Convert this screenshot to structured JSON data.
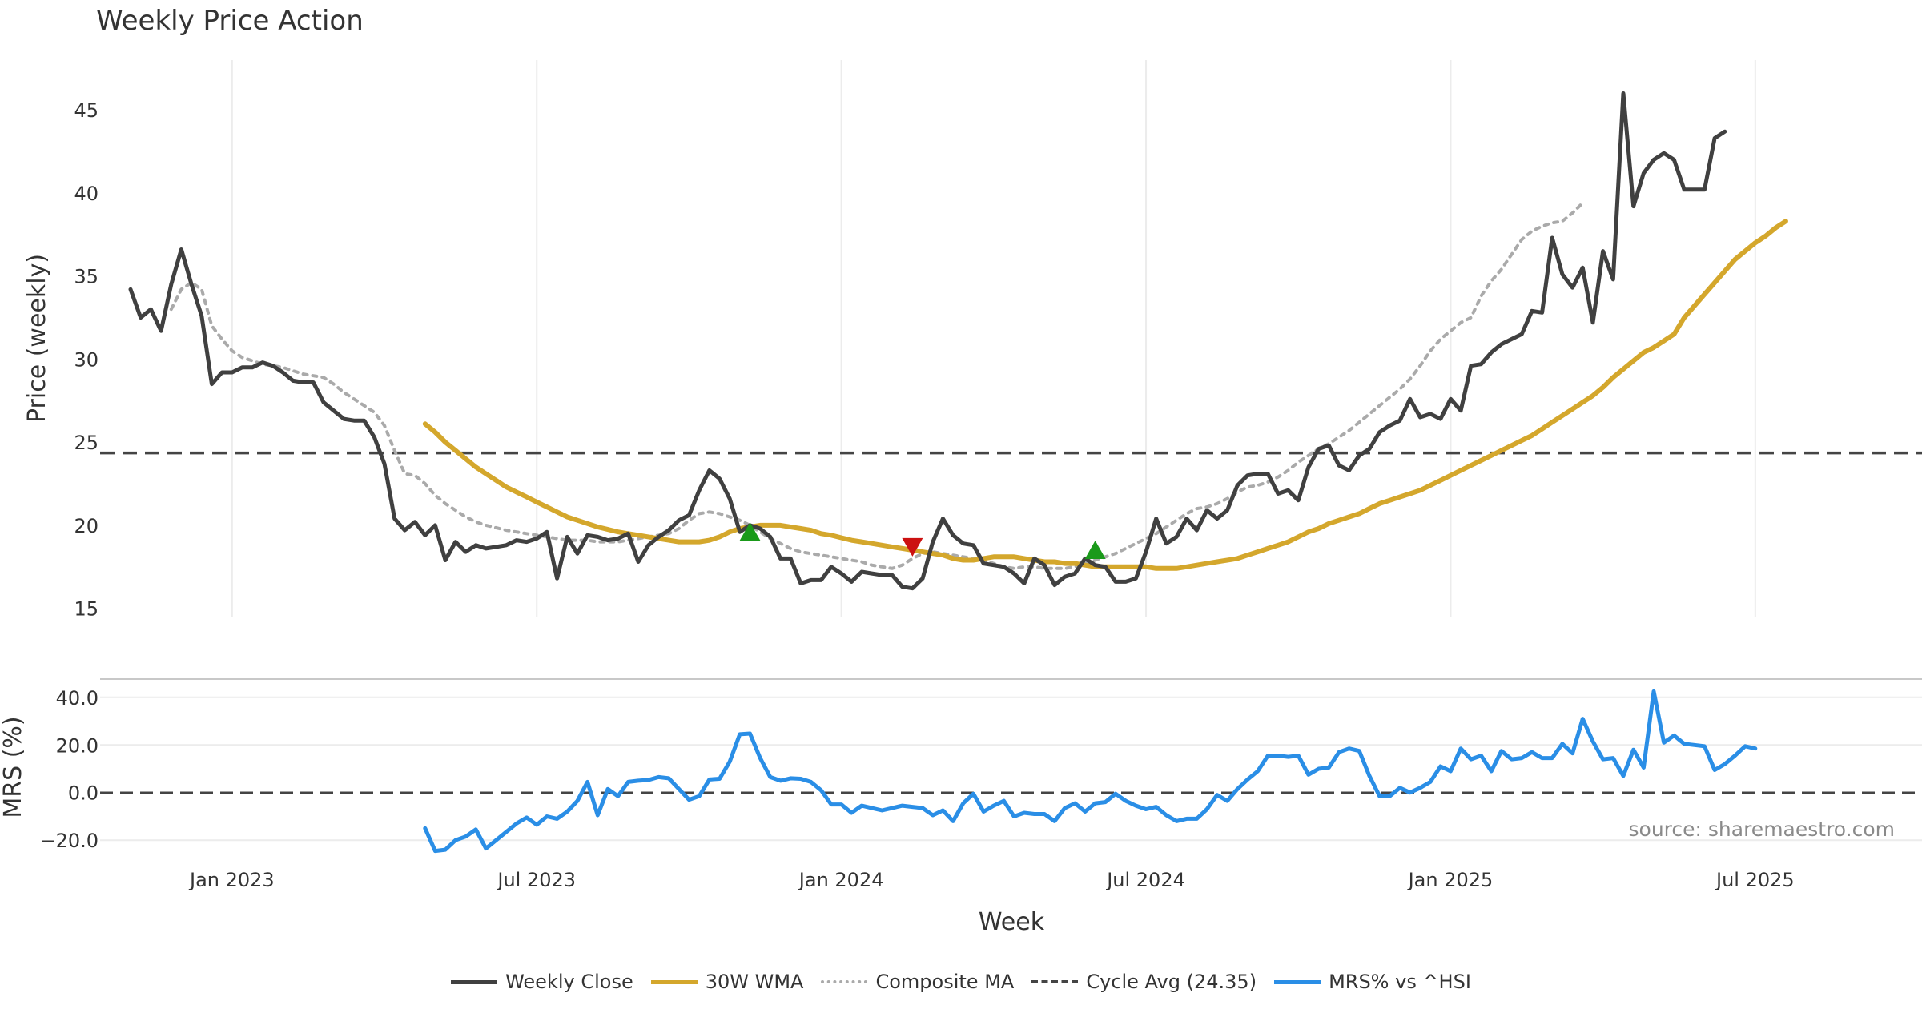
{
  "chart_data": [
    {
      "type": "line",
      "title": "Weekly Price Action",
      "ylabel": "Price (weekly)",
      "xlabel": "",
      "ylim": [
        14.5,
        48
      ],
      "yticks": [
        15,
        20,
        25,
        30,
        35,
        40,
        45
      ],
      "x_tick_labels": [
        "Jan 2023",
        "Jul 2023",
        "Jan 2024",
        "Jul 2024",
        "Jan 2025",
        "Jul 2025"
      ],
      "x_tick_weeks": [
        13,
        43,
        73,
        103,
        133,
        163
      ],
      "series": [
        {
          "name": "Weekly Close",
          "color": "#404040",
          "start_week": 3,
          "values": [
            34.2,
            32.5,
            33.0,
            31.7,
            34.5,
            36.6,
            34.5,
            32.6,
            28.5,
            29.2,
            29.2,
            29.5,
            29.5,
            29.8,
            29.6,
            29.2,
            28.7,
            28.6,
            28.6,
            27.4,
            26.9,
            26.4,
            26.3,
            26.3,
            25.3,
            23.7,
            20.4,
            19.7,
            20.2,
            19.4,
            20.0,
            17.9,
            19.0,
            18.4,
            18.8,
            18.6,
            18.7,
            18.8,
            19.1,
            19.0,
            19.2,
            19.6,
            16.8,
            19.3,
            18.3,
            19.4,
            19.3,
            19.1,
            19.2,
            19.5,
            17.8,
            18.8,
            19.3,
            19.7,
            20.3,
            20.6,
            22.1,
            23.3,
            22.8,
            21.6,
            19.6,
            20.0,
            19.8,
            19.3,
            18.0,
            18.0,
            16.5,
            16.7,
            16.7,
            17.5,
            17.1,
            16.6,
            17.2,
            17.1,
            17.0,
            17.0,
            16.3,
            16.2,
            16.8,
            19.0,
            20.4,
            19.4,
            18.9,
            18.8,
            17.7,
            17.6,
            17.5,
            17.1,
            16.5,
            18.0,
            17.6,
            16.4,
            16.9,
            17.1,
            18.0,
            17.6,
            17.5,
            16.6,
            16.6,
            16.8,
            18.4,
            20.4,
            18.9,
            19.3,
            20.4,
            19.7,
            20.9,
            20.4,
            20.9,
            22.4,
            23.0,
            23.1,
            23.1,
            21.9,
            22.1,
            21.5,
            23.5,
            24.6,
            24.8,
            23.6,
            23.3,
            24.2,
            24.6,
            25.6,
            26.0,
            26.3,
            27.6,
            26.5,
            26.7,
            26.4,
            27.6,
            26.9,
            29.6,
            29.7,
            30.4,
            30.9,
            31.2,
            31.5,
            32.9,
            32.8,
            37.3,
            35.1,
            34.3,
            35.5,
            32.2,
            36.5,
            34.8,
            46.0,
            39.2,
            41.2,
            42.0,
            42.4,
            42.0,
            40.2,
            40.2,
            40.2,
            43.3,
            43.7
          ]
        },
        {
          "name": "30W WMA",
          "color": "#d4a72c",
          "start_week": 32,
          "values": [
            26.1,
            25.6,
            25.0,
            24.5,
            24.0,
            23.5,
            23.1,
            22.7,
            22.3,
            22.0,
            21.7,
            21.4,
            21.1,
            20.8,
            20.5,
            20.3,
            20.1,
            19.9,
            19.75,
            19.6,
            19.5,
            19.4,
            19.3,
            19.2,
            19.1,
            19.0,
            19.0,
            19.0,
            19.1,
            19.3,
            19.6,
            19.8,
            19.9,
            20.0,
            20.0,
            20.0,
            19.9,
            19.8,
            19.7,
            19.5,
            19.4,
            19.25,
            19.1,
            19.0,
            18.9,
            18.8,
            18.7,
            18.6,
            18.5,
            18.4,
            18.3,
            18.2,
            18.0,
            17.9,
            17.9,
            18.0,
            18.1,
            18.1,
            18.1,
            18.0,
            17.9,
            17.8,
            17.8,
            17.7,
            17.7,
            17.6,
            17.5,
            17.5,
            17.5,
            17.5,
            17.5,
            17.5,
            17.4,
            17.4,
            17.4,
            17.5,
            17.6,
            17.7,
            17.8,
            17.9,
            18.0,
            18.2,
            18.4,
            18.6,
            18.8,
            19.0,
            19.3,
            19.6,
            19.8,
            20.1,
            20.3,
            20.5,
            20.7,
            21.0,
            21.3,
            21.5,
            21.7,
            21.9,
            22.1,
            22.4,
            22.7,
            23.0,
            23.3,
            23.6,
            23.9,
            24.2,
            24.5,
            24.8,
            25.1,
            25.4,
            25.8,
            26.2,
            26.6,
            27.0,
            27.4,
            27.8,
            28.3,
            28.9,
            29.4,
            29.9,
            30.4,
            30.7,
            31.1,
            31.5,
            32.5,
            33.2,
            33.9,
            34.6,
            35.3,
            36.0,
            36.5,
            37.0,
            37.4,
            37.9,
            38.3
          ]
        },
        {
          "name": "Composite MA",
          "color": "#aaaaaa",
          "start_week": 7,
          "values": [
            33.0,
            34.2,
            34.6,
            34.2,
            32.0,
            31.2,
            30.5,
            30.1,
            29.9,
            29.7,
            29.6,
            29.5,
            29.3,
            29.1,
            29.0,
            28.9,
            28.5,
            28.0,
            27.6,
            27.2,
            26.8,
            26.0,
            24.5,
            23.1,
            23.0,
            22.5,
            21.8,
            21.3,
            20.9,
            20.5,
            20.2,
            20.0,
            19.85,
            19.7,
            19.6,
            19.5,
            19.4,
            19.3,
            19.2,
            19.1,
            19.1,
            19.1,
            19.0,
            19.0,
            19.0,
            19.1,
            19.2,
            19.3,
            19.4,
            19.5,
            19.8,
            20.3,
            20.7,
            20.8,
            20.7,
            20.5,
            20.3,
            20.0,
            19.6,
            19.2,
            18.9,
            18.6,
            18.4,
            18.3,
            18.2,
            18.1,
            18.0,
            17.9,
            17.8,
            17.6,
            17.5,
            17.4,
            17.6,
            18.0,
            18.3,
            18.4,
            18.3,
            18.2,
            18.1,
            18.0,
            17.9,
            17.7,
            17.5,
            17.4,
            17.5,
            17.5,
            17.4,
            17.4,
            17.4,
            17.5,
            17.7,
            17.9,
            18.1,
            18.3,
            18.6,
            18.9,
            19.2,
            19.5,
            19.9,
            20.3,
            20.7,
            21.0,
            21.1,
            21.3,
            21.6,
            22.0,
            22.3,
            22.4,
            22.6,
            22.9,
            23.3,
            23.8,
            24.2,
            24.6,
            24.9,
            25.3,
            25.7,
            26.2,
            26.7,
            27.2,
            27.7,
            28.2,
            28.8,
            29.6,
            30.5,
            31.2,
            31.7,
            32.2,
            32.5,
            33.8,
            34.7,
            35.4,
            36.3,
            37.2,
            37.7,
            38.0,
            38.2,
            38.3,
            38.8,
            39.4
          ]
        }
      ],
      "reference_lines": [
        {
          "name": "Cycle Avg (24.35)",
          "value": 24.35,
          "color": "#444444",
          "style": "dashed"
        }
      ],
      "markers": [
        {
          "type": "buy",
          "week": 64,
          "value": 19.6,
          "color": "#1a9a1a"
        },
        {
          "type": "sell",
          "week": 80,
          "value": 18.7,
          "color": "#cc1111"
        },
        {
          "type": "buy",
          "week": 98,
          "value": 18.5,
          "color": "#1a9a1a"
        }
      ]
    },
    {
      "type": "line",
      "title": "",
      "ylabel": "MRS (%)",
      "xlabel": "Week",
      "ylim": [
        -27,
        47
      ],
      "yticks": [
        -20,
        0,
        20,
        40
      ],
      "ytick_labels": [
        "−20.0",
        "0.0",
        "20.0",
        "40.0"
      ],
      "series": [
        {
          "name": "MRS% vs ^HSI",
          "color": "#2a8ee6",
          "start_week": 32,
          "values": [
            -15.0,
            -24.5,
            -24.0,
            -20.0,
            -18.5,
            -15.5,
            -23.5,
            -20.0,
            -16.5,
            -13.0,
            -10.5,
            -13.5,
            -10.0,
            -11.0,
            -8.0,
            -3.5,
            4.5,
            -9.5,
            1.5,
            -1.5,
            4.5,
            5.0,
            5.3,
            6.5,
            6.0,
            1.5,
            -3.0,
            -1.5,
            5.5,
            5.8,
            13.0,
            24.5,
            24.8,
            14.5,
            6.5,
            5.0,
            6.0,
            5.8,
            4.5,
            1.0,
            -5.0,
            -5.0,
            -8.5,
            -5.5,
            -6.5,
            -7.5,
            -6.5,
            -5.5,
            -6.0,
            -6.5,
            -9.5,
            -7.5,
            -12.0,
            -4.5,
            -0.5,
            -8.0,
            -5.5,
            -3.5,
            -10.0,
            -8.5,
            -9.0,
            -9.0,
            -12.0,
            -6.5,
            -4.5,
            -8.0,
            -4.5,
            -4.0,
            -0.5,
            -3.5,
            -5.5,
            -7.0,
            -6.0,
            -9.5,
            -12.0,
            -11.0,
            -11.0,
            -7.0,
            -1.0,
            -3.5,
            1.5,
            5.5,
            9.0,
            15.5,
            15.5,
            15.0,
            15.5,
            7.5,
            10.0,
            10.5,
            17.0,
            18.5,
            17.5,
            7.0,
            -1.5,
            -1.5,
            2.0,
            0.0,
            2.0,
            4.5,
            11.0,
            9.0,
            18.5,
            14.0,
            15.5,
            9.0,
            17.5,
            14.0,
            14.5,
            17.0,
            14.5,
            14.5,
            20.5,
            16.5,
            31.0,
            21.5,
            14.0,
            14.5,
            7.0,
            18.0,
            10.5,
            42.5,
            21.0,
            24.0,
            20.5,
            20.0,
            19.5,
            9.5,
            12.0,
            15.5,
            19.5,
            18.5
          ]
        }
      ],
      "reference_lines": [
        {
          "name": "zero",
          "value": 0,
          "color": "#444444",
          "style": "dashed"
        }
      ],
      "annotation": "source: sharemaestro.com"
    }
  ],
  "legend": [
    {
      "label": "Weekly Close",
      "color": "#404040",
      "style": "solid"
    },
    {
      "label": "30W WMA",
      "color": "#d4a72c",
      "style": "solid"
    },
    {
      "label": "Composite MA",
      "color": "#aaaaaa",
      "style": "dotted"
    },
    {
      "label": "Cycle Avg (24.35)",
      "color": "#444444",
      "style": "dashed"
    },
    {
      "label": "MRS% vs ^HSI",
      "color": "#2a8ee6",
      "style": "solid"
    }
  ]
}
